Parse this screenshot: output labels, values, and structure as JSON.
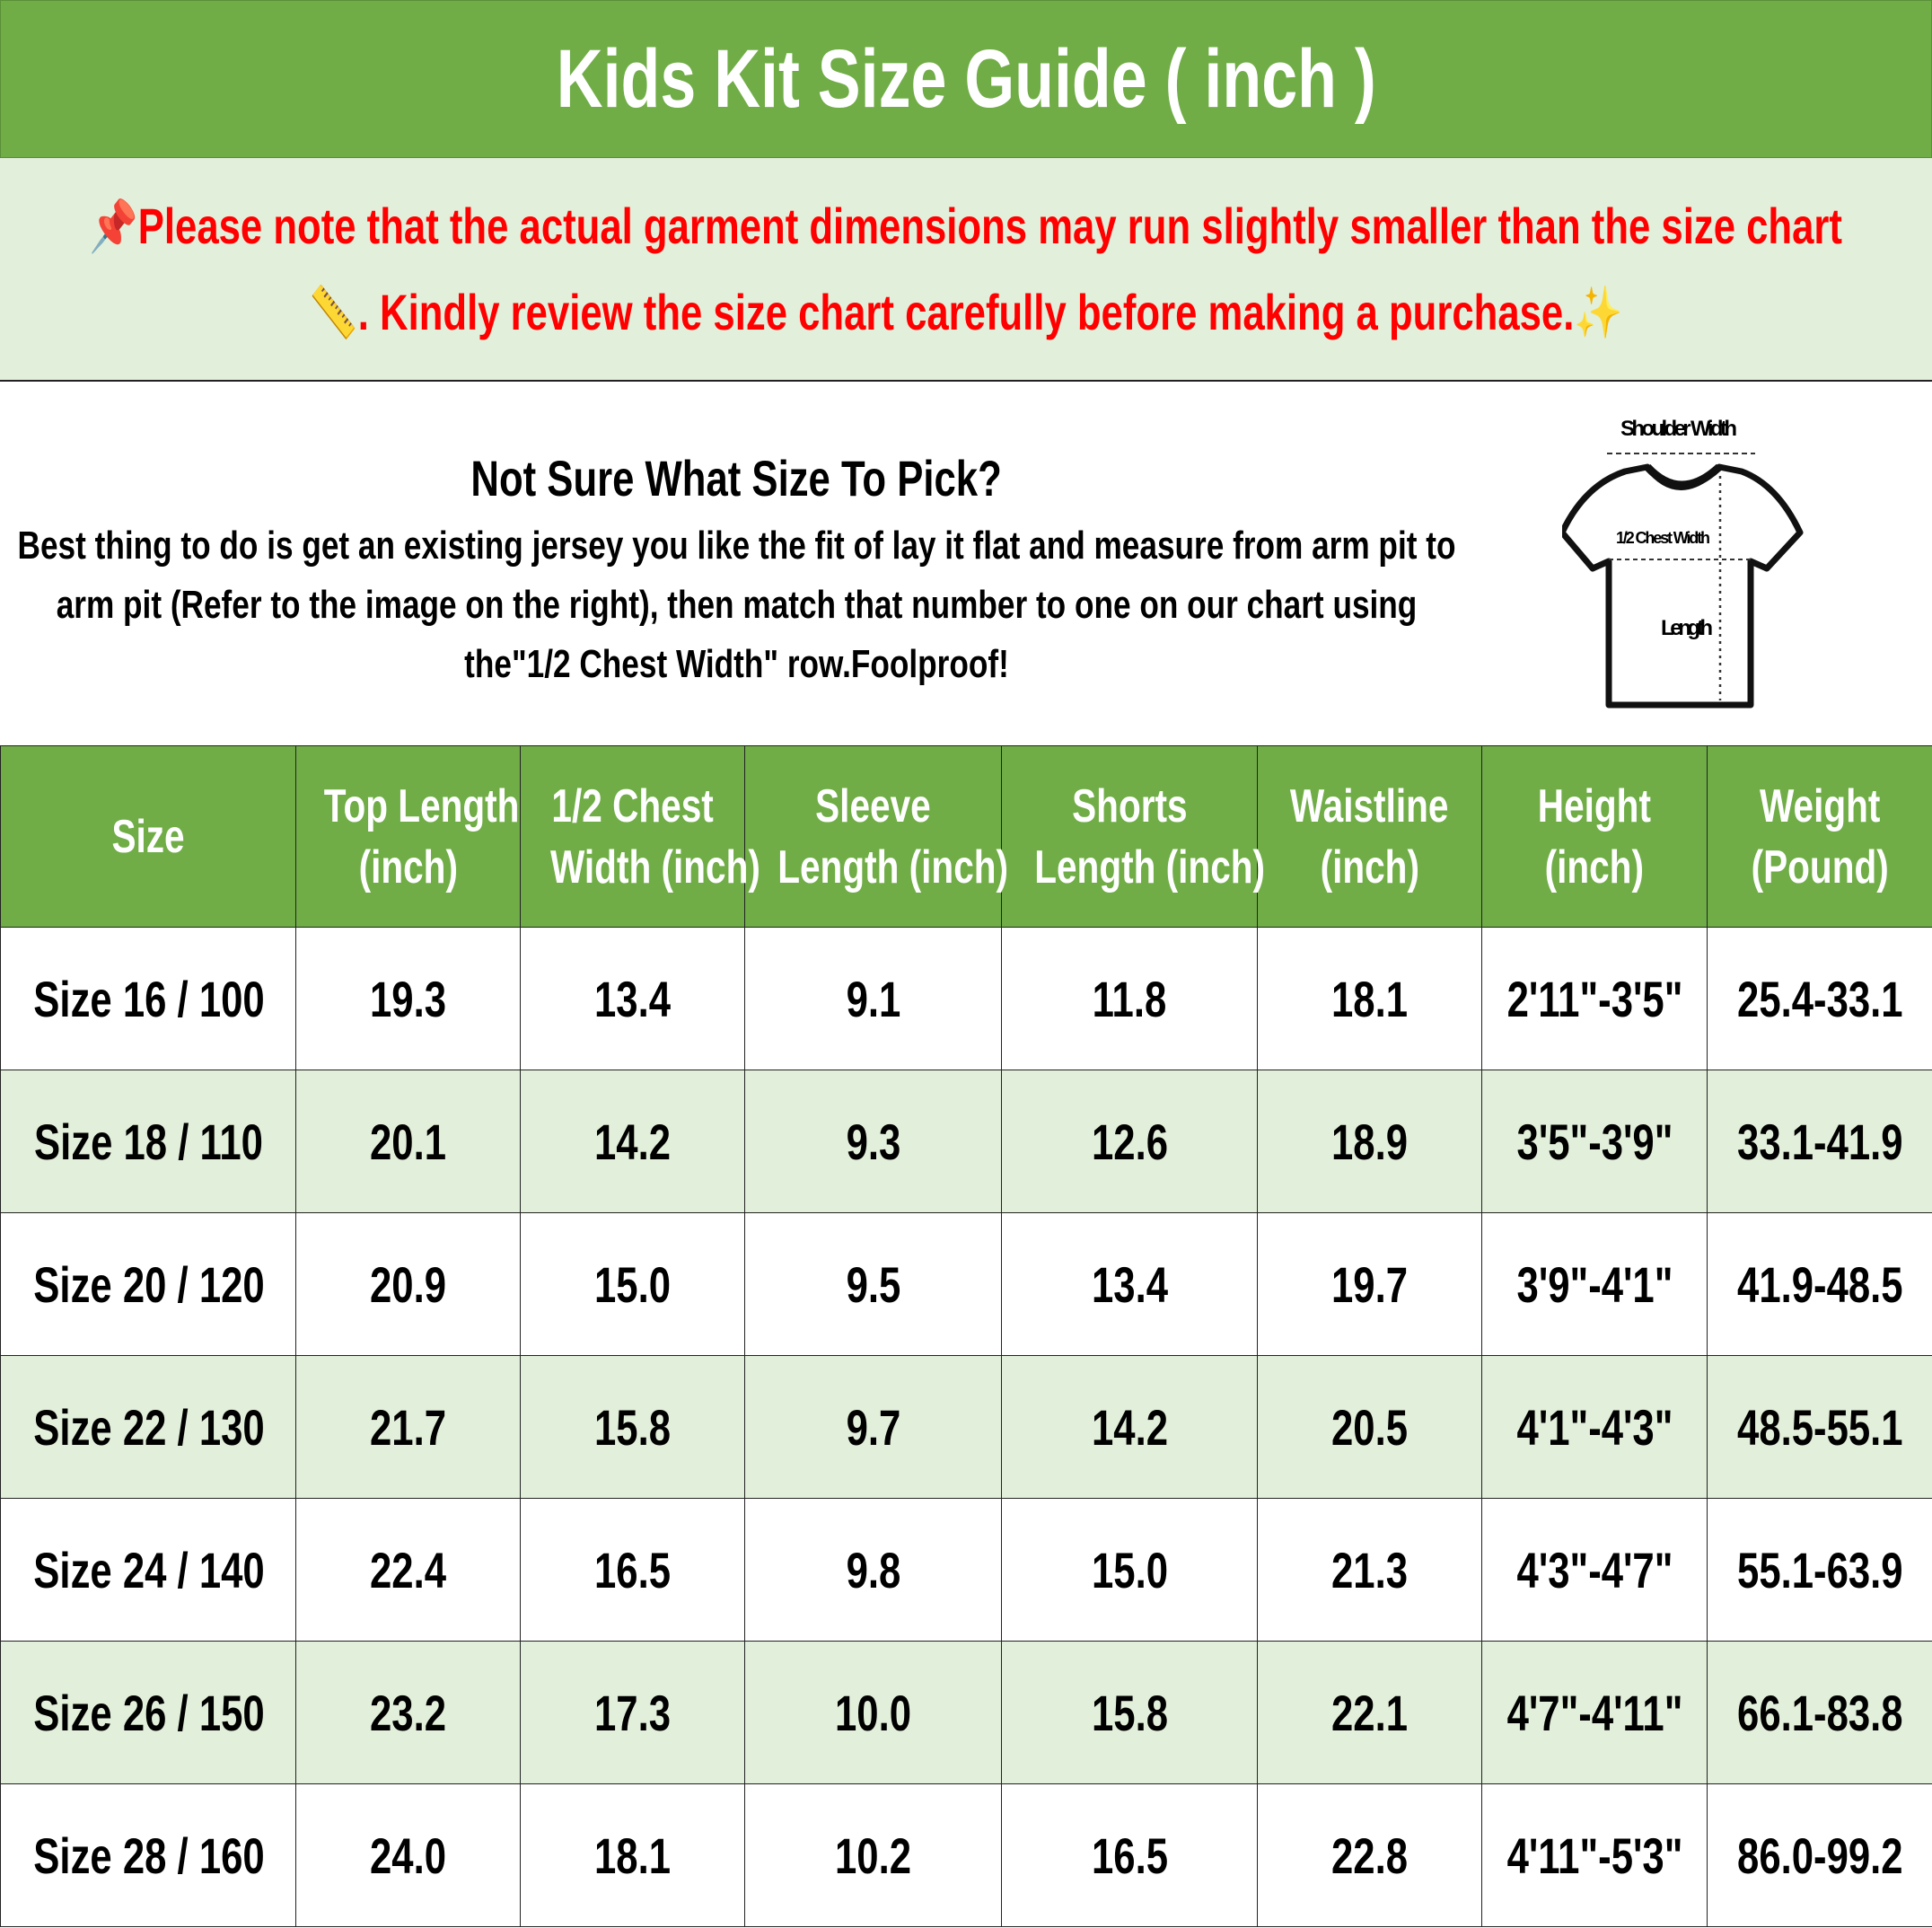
{
  "title": "Kids Kit Size Guide ( inch )",
  "notice": {
    "line1": "Please note that the actual garment dimensions may run slightly smaller than the size chart",
    "line2": ". Kindly review the size chart carefully before making a purchase.",
    "icons": [
      "pushpin-icon",
      "ruler-icon",
      "sparkles-icon"
    ],
    "color": "#FF0000"
  },
  "info": {
    "heading": "Not Sure What Size To Pick?",
    "body": "Best thing to do is get an existing jersey you like the fit of lay it flat and measure from arm pit to arm pit (Refer to the image on the right), then match that number to one on our chart using the\"1/2 Chest Width\" row.Foolproof!"
  },
  "diagram": {
    "shoulder": "Shoulder Width",
    "chest": "1/2 Chest Width",
    "length": "Length"
  },
  "colors": {
    "green": "#70AD47",
    "light_green": "#E2EFDA"
  },
  "table": {
    "headers": [
      [
        "Size"
      ],
      [
        "Top Length",
        "(inch)"
      ],
      [
        "1/2 Chest",
        "Width (inch)"
      ],
      [
        "Sleeve",
        "Length (inch)"
      ],
      [
        "Shorts",
        "Length (inch)"
      ],
      [
        "Waistline",
        "(inch)"
      ],
      [
        "Height",
        "(inch)"
      ],
      [
        "Weight",
        "(Pound)"
      ]
    ],
    "rows": [
      [
        "Size 16 / 100",
        "19.3",
        "13.4",
        "9.1",
        "11.8",
        "18.1",
        "2'11\"-3'5\"",
        "25.4-33.1"
      ],
      [
        "Size 18 / 110",
        "20.1",
        "14.2",
        "9.3",
        "12.6",
        "18.9",
        "3'5\"-3'9\"",
        "33.1-41.9"
      ],
      [
        "Size 20 / 120",
        "20.9",
        "15.0",
        "9.5",
        "13.4",
        "19.7",
        "3'9\"-4'1\"",
        "41.9-48.5"
      ],
      [
        "Size 22 / 130",
        "21.7",
        "15.8",
        "9.7",
        "14.2",
        "20.5",
        "4'1\"-4'3\"",
        "48.5-55.1"
      ],
      [
        "Size 24 / 140",
        "22.4",
        "16.5",
        "9.8",
        "15.0",
        "21.3",
        "4'3\"-4'7\"",
        "55.1-63.9"
      ],
      [
        "Size 26 / 150",
        "23.2",
        "17.3",
        "10.0",
        "15.8",
        "22.1",
        "4'7\"-4'11\"",
        "66.1-83.8"
      ],
      [
        "Size 28 / 160",
        "24.0",
        "18.1",
        "10.2",
        "16.5",
        "22.8",
        "4'11\"-5'3\"",
        "86.0-99.2"
      ]
    ]
  }
}
